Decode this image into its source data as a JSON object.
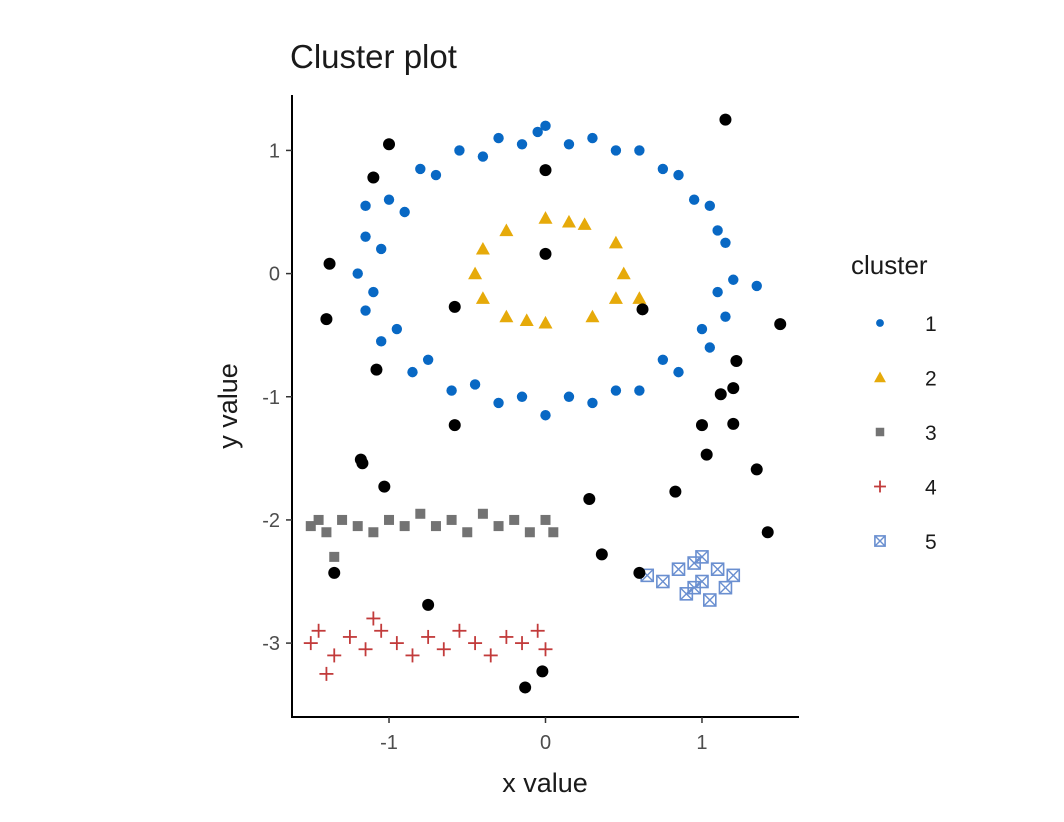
{
  "chart_data": {
    "type": "scatter",
    "title": "Cluster plot",
    "xlabel": "x value",
    "ylabel": "y value",
    "xlim": [
      -1.62,
      1.62
    ],
    "ylim": [
      -3.6,
      1.45
    ],
    "x_ticks": [
      -1,
      0,
      1
    ],
    "y_ticks": [
      1,
      0,
      -1,
      -2,
      -3
    ],
    "x_tick_labels": [
      "-1",
      "0",
      "1"
    ],
    "y_tick_labels": [
      "1",
      "0",
      "-1",
      "-2",
      "-3"
    ],
    "grid": false,
    "legend_title": "cluster",
    "legend_position": "right",
    "noise_color": "#000000",
    "series": [
      {
        "name": "1",
        "shape": "circle",
        "color": "#0868c4",
        "points": [
          [
            0.0,
            1.2
          ],
          [
            -0.05,
            1.15
          ],
          [
            0.3,
            1.1
          ],
          [
            0.6,
            1.0
          ],
          [
            0.85,
            0.8
          ],
          [
            1.05,
            0.55
          ],
          [
            1.15,
            0.25
          ],
          [
            1.2,
            -0.05
          ],
          [
            1.15,
            -0.35
          ],
          [
            1.05,
            -0.6
          ],
          [
            0.85,
            -0.8
          ],
          [
            0.6,
            -0.95
          ],
          [
            0.3,
            -1.05
          ],
          [
            0.0,
            -1.15
          ],
          [
            -0.3,
            -1.05
          ],
          [
            -0.6,
            -0.95
          ],
          [
            -0.85,
            -0.8
          ],
          [
            -1.05,
            -0.55
          ],
          [
            -1.15,
            -0.3
          ],
          [
            -1.2,
            0.0
          ],
          [
            -1.15,
            0.3
          ],
          [
            -1.0,
            0.6
          ],
          [
            -0.8,
            0.85
          ],
          [
            -0.55,
            1.0
          ],
          [
            -0.3,
            1.1
          ],
          [
            -0.15,
            1.05
          ],
          [
            0.15,
            1.05
          ],
          [
            0.45,
            1.0
          ],
          [
            0.75,
            0.85
          ],
          [
            0.95,
            0.6
          ],
          [
            1.1,
            0.35
          ],
          [
            1.1,
            -0.15
          ],
          [
            1.0,
            -0.45
          ],
          [
            0.75,
            -0.7
          ],
          [
            0.45,
            -0.95
          ],
          [
            0.15,
            -1.0
          ],
          [
            -0.15,
            -1.0
          ],
          [
            -0.45,
            -0.9
          ],
          [
            -0.75,
            -0.7
          ],
          [
            -0.95,
            -0.45
          ],
          [
            -1.1,
            -0.15
          ],
          [
            -1.05,
            0.2
          ],
          [
            -0.9,
            0.5
          ],
          [
            -0.7,
            0.8
          ],
          [
            -0.4,
            0.95
          ],
          [
            1.35,
            -0.1
          ],
          [
            -1.15,
            0.55
          ]
        ]
      },
      {
        "name": "2",
        "shape": "triangle",
        "color": "#e6aa0a",
        "points": [
          [
            0.0,
            0.45
          ],
          [
            0.25,
            0.4
          ],
          [
            0.45,
            0.25
          ],
          [
            0.5,
            0.0
          ],
          [
            0.45,
            -0.2
          ],
          [
            0.3,
            -0.35
          ],
          [
            0.0,
            -0.4
          ],
          [
            -0.25,
            -0.35
          ],
          [
            -0.4,
            -0.2
          ],
          [
            -0.45,
            0.0
          ],
          [
            -0.4,
            0.2
          ],
          [
            -0.25,
            0.35
          ],
          [
            0.6,
            -0.2
          ],
          [
            0.15,
            0.42
          ],
          [
            -0.12,
            -0.38
          ]
        ]
      },
      {
        "name": "3",
        "shape": "square",
        "color": "#737373",
        "points": [
          [
            -1.5,
            -2.05
          ],
          [
            -1.45,
            -2.0
          ],
          [
            -1.4,
            -2.1
          ],
          [
            -1.3,
            -2.0
          ],
          [
            -1.2,
            -2.05
          ],
          [
            -1.1,
            -2.1
          ],
          [
            -1.0,
            -2.0
          ],
          [
            -0.9,
            -2.05
          ],
          [
            -0.8,
            -1.95
          ],
          [
            -0.7,
            -2.05
          ],
          [
            -0.6,
            -2.0
          ],
          [
            -0.5,
            -2.1
          ],
          [
            -0.4,
            -1.95
          ],
          [
            -0.3,
            -2.05
          ],
          [
            -0.2,
            -2.0
          ],
          [
            -0.1,
            -2.1
          ],
          [
            0.0,
            -2.0
          ],
          [
            0.05,
            -2.1
          ],
          [
            -1.35,
            -2.3
          ]
        ]
      },
      {
        "name": "4",
        "shape": "plus",
        "color": "#c23b3b",
        "points": [
          [
            -1.5,
            -3.0
          ],
          [
            -1.45,
            -2.9
          ],
          [
            -1.35,
            -3.1
          ],
          [
            -1.25,
            -2.95
          ],
          [
            -1.15,
            -3.05
          ],
          [
            -1.05,
            -2.9
          ],
          [
            -0.95,
            -3.0
          ],
          [
            -0.85,
            -3.1
          ],
          [
            -0.75,
            -2.95
          ],
          [
            -0.65,
            -3.05
          ],
          [
            -0.55,
            -2.9
          ],
          [
            -0.45,
            -3.0
          ],
          [
            -0.35,
            -3.1
          ],
          [
            -0.25,
            -2.95
          ],
          [
            -0.15,
            -3.0
          ],
          [
            -0.05,
            -2.9
          ],
          [
            0.0,
            -3.05
          ],
          [
            -1.4,
            -3.25
          ],
          [
            -1.1,
            -2.8
          ]
        ]
      },
      {
        "name": "5",
        "shape": "box-x",
        "color": "#6a8fd0",
        "points": [
          [
            0.65,
            -2.45
          ],
          [
            0.75,
            -2.5
          ],
          [
            0.85,
            -2.4
          ],
          [
            0.9,
            -2.6
          ],
          [
            0.95,
            -2.35
          ],
          [
            1.0,
            -2.5
          ],
          [
            1.05,
            -2.65
          ],
          [
            1.1,
            -2.4
          ],
          [
            1.15,
            -2.55
          ],
          [
            1.2,
            -2.45
          ],
          [
            0.95,
            -2.55
          ],
          [
            1.0,
            -2.3
          ]
        ]
      }
    ],
    "noise_points": [
      [
        1.15,
        1.25
      ],
      [
        -1.0,
        1.05
      ],
      [
        -1.1,
        0.78
      ],
      [
        0.0,
        0.84
      ],
      [
        -1.38,
        0.08
      ],
      [
        0.0,
        0.16
      ],
      [
        -1.4,
        -0.37
      ],
      [
        -0.58,
        -0.27
      ],
      [
        0.62,
        -0.29
      ],
      [
        1.5,
        -0.41
      ],
      [
        1.22,
        -0.71
      ],
      [
        -1.08,
        -0.78
      ],
      [
        1.2,
        -0.93
      ],
      [
        1.12,
        -0.98
      ],
      [
        -0.58,
        -1.23
      ],
      [
        1.0,
        -1.23
      ],
      [
        1.2,
        -1.22
      ],
      [
        1.03,
        -1.47
      ],
      [
        -1.18,
        -1.51
      ],
      [
        -1.17,
        -1.54
      ],
      [
        1.35,
        -1.59
      ],
      [
        -1.03,
        -1.73
      ],
      [
        0.83,
        -1.77
      ],
      [
        0.28,
        -1.83
      ],
      [
        1.42,
        -2.1
      ],
      [
        0.36,
        -2.28
      ],
      [
        -1.35,
        -2.43
      ],
      [
        0.6,
        -2.43
      ],
      [
        -0.75,
        -2.69
      ],
      [
        -0.02,
        -3.23
      ],
      [
        -0.13,
        -3.36
      ]
    ]
  }
}
